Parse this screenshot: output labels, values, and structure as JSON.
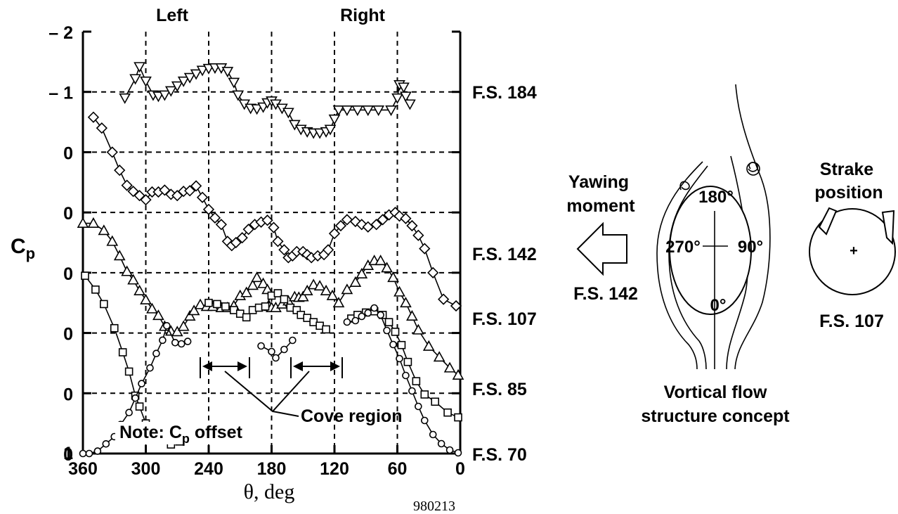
{
  "chart_data": {
    "type": "line",
    "x_axis": {
      "label": "θ, deg",
      "range": [
        360,
        0
      ],
      "reversed": true,
      "ticks": [
        360,
        300,
        240,
        180,
        120,
        60,
        0
      ]
    },
    "y_axis": {
      "label_main": "C",
      "label_sub": "p",
      "ticks": [
        "– 2",
        "– 1",
        "0",
        "0",
        "0",
        "0",
        "0",
        "0",
        "1"
      ],
      "note": "Note: C",
      "note_sub": "p",
      "note_tail": " offset"
    },
    "top_labels": {
      "left": "Left",
      "right": "Right"
    },
    "grid": true,
    "series": [
      {
        "name": "F.S. 184",
        "marker": "triangle-down",
        "offset": -1,
        "segments": [
          [
            [
              320,
              -0.9
            ],
            [
              310,
              -1.22
            ],
            [
              306,
              -1.42
            ],
            [
              300,
              -1.18
            ],
            [
              293,
              -0.95
            ],
            [
              288,
              -0.93
            ],
            [
              282,
              -0.95
            ],
            [
              276,
              -1.02
            ],
            [
              270,
              -1.1
            ],
            [
              264,
              -1.18
            ],
            [
              258,
              -1.24
            ],
            [
              252,
              -1.3
            ],
            [
              246,
              -1.36
            ],
            [
              240,
              -1.39
            ],
            [
              234,
              -1.4
            ],
            [
              228,
              -1.4
            ],
            [
              222,
              -1.34
            ],
            [
              216,
              -1.16
            ],
            [
              212,
              -0.95
            ],
            [
              206,
              -0.8
            ],
            [
              200,
              -0.73
            ],
            [
              194,
              -0.72
            ],
            [
              188,
              -0.75
            ],
            [
              184,
              -0.82
            ],
            [
              180,
              -0.85
            ],
            [
              176,
              -0.8
            ],
            [
              170,
              -0.73
            ],
            [
              164,
              -0.66
            ],
            [
              158,
              -0.46
            ],
            [
              152,
              -0.38
            ],
            [
              146,
              -0.34
            ],
            [
              140,
              -0.32
            ],
            [
              134,
              -0.32
            ],
            [
              128,
              -0.34
            ],
            [
              124,
              -0.38
            ],
            [
              120,
              -0.55
            ],
            [
              116,
              -0.7
            ],
            [
              108,
              -0.7
            ],
            [
              98,
              -0.7
            ],
            [
              88,
              -0.7
            ],
            [
              78,
              -0.7
            ],
            [
              66,
              -0.7
            ],
            [
              60,
              -0.9
            ],
            [
              58,
              -1.12
            ],
            [
              54,
              -1.08
            ],
            [
              52,
              -0.93
            ],
            [
              48,
              -0.8
            ]
          ]
        ]
      },
      {
        "name": "F.S. 142",
        "marker": "diamond",
        "offset": 0,
        "segments": [
          [
            [
              350,
              -1.58
            ],
            [
              342,
              -1.4
            ],
            [
              332,
              -1.0
            ],
            [
              325,
              -0.7
            ],
            [
              318,
              -0.45
            ],
            [
              312,
              -0.35
            ],
            [
              306,
              -0.28
            ],
            [
              300,
              -0.21
            ],
            [
              294,
              -0.34
            ],
            [
              288,
              -0.34
            ],
            [
              282,
              -0.37
            ],
            [
              276,
              -0.3
            ],
            [
              270,
              -0.28
            ],
            [
              264,
              -0.35
            ],
            [
              258,
              -0.36
            ],
            [
              252,
              -0.44
            ],
            [
              246,
              -0.25
            ],
            [
              240,
              -0.05
            ],
            [
              234,
              0.09
            ],
            [
              228,
              0.2
            ],
            [
              222,
              0.48
            ],
            [
              218,
              0.55
            ],
            [
              214,
              0.5
            ],
            [
              208,
              0.42
            ],
            [
              202,
              0.28
            ],
            [
              196,
              0.2
            ],
            [
              190,
              0.16
            ],
            [
              184,
              0.13
            ],
            [
              178,
              0.25
            ],
            [
              174,
              0.48
            ],
            [
              168,
              0.62
            ],
            [
              164,
              0.75
            ],
            [
              160,
              0.72
            ],
            [
              156,
              0.65
            ],
            [
              150,
              0.65
            ],
            [
              146,
              0.7
            ],
            [
              142,
              0.75
            ],
            [
              136,
              0.72
            ],
            [
              130,
              0.7
            ],
            [
              126,
              0.62
            ],
            [
              120,
              0.35
            ],
            [
              114,
              0.22
            ],
            [
              108,
              0.12
            ],
            [
              100,
              0.15
            ],
            [
              94,
              0.2
            ],
            [
              88,
              0.24
            ],
            [
              80,
              0.2
            ],
            [
              74,
              0.12
            ],
            [
              68,
              0.04
            ],
            [
              62,
              0.0
            ],
            [
              58,
              0.06
            ],
            [
              52,
              0.1
            ],
            [
              46,
              0.22
            ],
            [
              40,
              0.38
            ],
            [
              34,
              0.6
            ],
            [
              26,
              1.0
            ],
            [
              16,
              1.44
            ],
            [
              4,
              1.55
            ]
          ]
        ]
      },
      {
        "name": "F.S. 107",
        "marker": "triangle-up",
        "offset": 0,
        "segments": [
          [
            [
              360,
              -0.82
            ],
            [
              350,
              -0.82
            ],
            [
              340,
              -0.7
            ],
            [
              332,
              -0.52
            ],
            [
              325,
              -0.28
            ],
            [
              318,
              -0.02
            ],
            [
              312,
              0.12
            ],
            [
              306,
              0.3
            ],
            [
              300,
              0.45
            ],
            [
              294,
              0.6
            ],
            [
              288,
              0.71
            ],
            [
              282,
              0.89
            ],
            [
              276,
              0.97
            ],
            [
              270,
              0.98
            ],
            [
              264,
              0.89
            ],
            [
              258,
              0.72
            ],
            [
              254,
              0.63
            ],
            [
              248,
              0.53
            ],
            [
              242,
              0.56
            ],
            [
              236,
              0.56
            ],
            [
              228,
              0.58
            ],
            [
              222,
              0.58
            ],
            [
              216,
              0.55
            ],
            [
              210,
              0.38
            ],
            [
              204,
              0.33
            ],
            [
              198,
              0.21
            ],
            [
              194,
              0.08
            ],
            [
              188,
              0.18
            ],
            [
              184,
              0.28
            ],
            [
              182,
              0.56
            ],
            [
              180,
              0.58
            ],
            [
              176,
              0.58
            ],
            [
              170,
              0.52
            ],
            [
              164,
              0.47
            ],
            [
              158,
              0.4
            ],
            [
              154,
              0.41
            ],
            [
              150,
              0.4
            ],
            [
              146,
              0.3
            ],
            [
              140,
              0.2
            ],
            [
              134,
              0.22
            ],
            [
              128,
              0.3
            ],
            [
              122,
              0.38
            ],
            [
              116,
              0.5
            ],
            [
              108,
              0.28
            ],
            [
              100,
              0.16
            ],
            [
              94,
              0.02
            ],
            [
              88,
              -0.12
            ],
            [
              82,
              -0.2
            ],
            [
              76,
              -0.2
            ],
            [
              70,
              -0.08
            ],
            [
              64,
              0.08
            ],
            [
              58,
              0.32
            ],
            [
              52,
              0.5
            ],
            [
              46,
              0.72
            ],
            [
              40,
              0.95
            ],
            [
              30,
              1.22
            ],
            [
              20,
              1.4
            ],
            [
              10,
              1.58
            ],
            [
              2,
              1.7
            ]
          ]
        ]
      },
      {
        "name": "F.S. 85",
        "marker": "square",
        "offset": 0,
        "segments": [
          [
            [
              358,
              -0.95
            ],
            [
              348,
              -0.72
            ],
            [
              340,
              -0.48
            ],
            [
              330,
              -0.08
            ],
            [
              322,
              0.32
            ],
            [
              316,
              0.64
            ],
            [
              310,
              1.04
            ],
            [
              306,
              1.22
            ],
            [
              300,
              1.5
            ],
            [
              294,
              1.66
            ],
            [
              288,
              1.72
            ],
            [
              282,
              1.75
            ],
            [
              276,
              1.85
            ],
            [
              268,
              1.8
            ],
            [
              260,
              1.72
            ],
            [
              252,
              1.65
            ]
          ],
          [
            [
              240,
              -0.5
            ],
            [
              232,
              -0.48
            ],
            [
              224,
              -0.44
            ],
            [
              216,
              -0.38
            ],
            [
              210,
              -0.32
            ],
            [
              204,
              -0.26
            ],
            [
              198,
              -0.38
            ],
            [
              192,
              -0.42
            ],
            [
              186,
              -0.44
            ],
            [
              180,
              -0.62
            ],
            [
              174,
              -0.66
            ],
            [
              168,
              -0.56
            ],
            [
              162,
              -0.42
            ],
            [
              156,
              -0.38
            ],
            [
              152,
              -0.3
            ],
            [
              146,
              -0.25
            ],
            [
              140,
              -0.18
            ],
            [
              134,
              -0.12
            ],
            [
              128,
              -0.06
            ]
          ],
          [
            [
              104,
              -0.24
            ],
            [
              98,
              -0.3
            ],
            [
              90,
              -0.34
            ],
            [
              82,
              -0.36
            ],
            [
              74,
              -0.3
            ],
            [
              68,
              -0.18
            ],
            [
              62,
              -0.02
            ],
            [
              56,
              0.2
            ],
            [
              50,
              0.48
            ],
            [
              42,
              0.8
            ],
            [
              34,
              1.02
            ],
            [
              24,
              1.14
            ],
            [
              12,
              1.32
            ],
            [
              2,
              1.4
            ]
          ]
        ]
      },
      {
        "name": "F.S. 70",
        "marker": "circle",
        "offset": 1,
        "segments": [
          [
            [
              360,
              1.0
            ],
            [
              354,
              1.0
            ],
            [
              346,
              0.96
            ],
            [
              338,
              0.84
            ],
            [
              330,
              0.72
            ],
            [
              324,
              0.52
            ],
            [
              316,
              0.32
            ],
            [
              310,
              0.08
            ],
            [
              304,
              -0.16
            ],
            [
              296,
              -0.42
            ],
            [
              290,
              -0.66
            ],
            [
              284,
              -0.88
            ],
            [
              280,
              -1.12
            ],
            [
              272,
              -0.84
            ],
            [
              266,
              -0.82
            ],
            [
              260,
              -0.86
            ]
          ]
        ]
      }
    ],
    "annotations": [
      "Cove region",
      "980213"
    ],
    "cove_markers": [
      [
        240,
        200
      ],
      [
        160,
        120
      ]
    ]
  },
  "stations": [
    "F.S. 184",
    "F.S. 142",
    "F.S. 107",
    "F.S. 85",
    "F.S. 70"
  ],
  "diagram": {
    "yawing_label_1": "Yawing",
    "yawing_label_2": "moment",
    "fs_left": "F.S. 142",
    "angle_180": "180°",
    "angle_270": "270°",
    "angle_90": "90°",
    "angle_0": "0°",
    "caption_1": "Vortical flow",
    "caption_2": "structure concept",
    "strake_1": "Strake",
    "strake_2": "position",
    "fs_right": "F.S. 107"
  }
}
